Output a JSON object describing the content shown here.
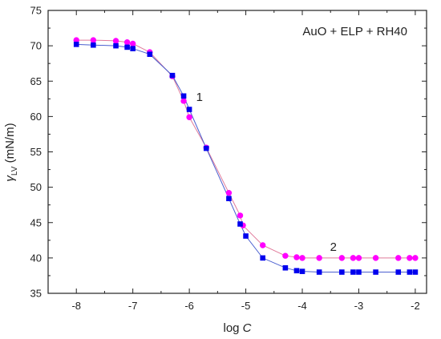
{
  "chart_data": {
    "type": "line",
    "annotation": "AuO + ELP + RH40",
    "xlabel_plain": "log ",
    "xlabel_italic": "C",
    "ylabel_symbol": "γ",
    "ylabel_subscript": "LV",
    "ylabel_unit": " (mN/m)",
    "xlim": [
      -8.5,
      -1.8
    ],
    "ylim": [
      35,
      75
    ],
    "xticks": [
      -8,
      -7,
      -6,
      -5,
      -4,
      -3,
      -2
    ],
    "xtick_labels": [
      "-8",
      "-7",
      "-6",
      "-5",
      "-4",
      "-3",
      "-2"
    ],
    "yticks": [
      35,
      40,
      45,
      50,
      55,
      60,
      65,
      70,
      75
    ],
    "ytick_labels": [
      "35",
      "40",
      "45",
      "50",
      "55",
      "60",
      "65",
      "70",
      "75"
    ],
    "grid": false,
    "series": [
      {
        "label": "1",
        "label_at": [
          -5.82,
          62.2
        ],
        "marker": "circle",
        "color": "#ff00ff",
        "line_color": "#e07a9a",
        "x": [
          -8.0,
          -7.7,
          -7.3,
          -7.1,
          -7.0,
          -6.7,
          -6.3,
          -6.1,
          -6.0,
          -5.7,
          -5.3,
          -5.1,
          -5.05,
          -4.7,
          -4.3,
          -4.1,
          -4.0,
          -3.7,
          -3.3,
          -3.1,
          -3.0,
          -2.7,
          -2.3,
          -2.1,
          -2.0
        ],
        "y": [
          70.8,
          70.8,
          70.7,
          70.5,
          70.3,
          69.1,
          65.7,
          62.2,
          59.9,
          55.6,
          49.2,
          46.0,
          44.6,
          41.8,
          40.3,
          40.1,
          40.0,
          40.0,
          40.0,
          40.0,
          40.0,
          40.0,
          40.0,
          40.0,
          40.0
        ]
      },
      {
        "label": "2",
        "label_at": [
          -3.45,
          41.0
        ],
        "marker": "square",
        "color": "#0000ee",
        "line_color": "#4a5fd0",
        "x": [
          -8.0,
          -7.7,
          -7.3,
          -7.1,
          -7.0,
          -6.7,
          -6.3,
          -6.1,
          -6.0,
          -5.7,
          -5.3,
          -5.1,
          -5.0,
          -4.7,
          -4.3,
          -4.1,
          -4.0,
          -3.7,
          -3.3,
          -3.1,
          -3.0,
          -2.7,
          -2.3,
          -2.1,
          -2.0
        ],
        "y": [
          70.2,
          70.1,
          70.0,
          69.8,
          69.6,
          68.8,
          65.8,
          62.9,
          61.0,
          55.5,
          48.4,
          44.8,
          43.1,
          40.0,
          38.6,
          38.2,
          38.1,
          38.0,
          38.0,
          38.0,
          38.0,
          38.0,
          38.0,
          38.0,
          38.0
        ]
      }
    ]
  }
}
